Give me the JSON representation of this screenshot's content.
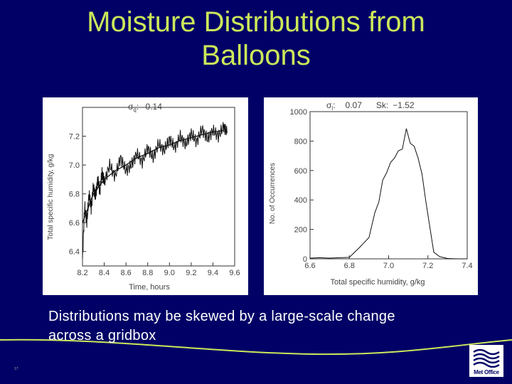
{
  "slide": {
    "title_line1": "Moisture Distributions from",
    "title_line2": "Balloons",
    "caption_line1": "Distributions may be skewed by a large-scale change",
    "caption_line2": "across a gridbox",
    "page_number": "17",
    "logo_text": "Met Office",
    "colors": {
      "background": "#000066",
      "title": "#cce85a",
      "caption": "#ffffff",
      "accent_curve": "#cce85a"
    }
  },
  "chart_data": [
    {
      "type": "line",
      "annotation_symbol": "σ",
      "annotation_sub": "q",
      "annotation_value": "0.14",
      "xlabel": "Time, hours",
      "ylabel": "Total specific humidity, g/kg",
      "xlim": [
        8.2,
        9.6
      ],
      "ylim": [
        6.3,
        7.4
      ],
      "xticks": [
        "8.2",
        "8.4",
        "8.6",
        "8.8",
        "9.0",
        "9.2",
        "9.4",
        "9.6"
      ],
      "yticks": [
        "6.4",
        "6.6",
        "6.8",
        "7.0",
        "7.2"
      ],
      "grid": false,
      "series": [
        {
          "style": "noisy",
          "x": [
            8.2,
            8.22,
            8.24,
            8.26,
            8.28,
            8.3,
            8.32,
            8.34,
            8.36,
            8.38,
            8.4,
            8.45,
            8.5,
            8.55,
            8.6,
            8.65,
            8.7,
            8.75,
            8.8,
            8.85,
            8.9,
            8.95,
            9.0,
            9.05,
            9.1,
            9.15,
            9.2,
            9.25,
            9.3,
            9.35,
            9.4,
            9.45,
            9.5,
            9.53
          ],
          "y": [
            6.35,
            6.72,
            6.6,
            6.8,
            6.7,
            6.85,
            6.78,
            6.9,
            6.82,
            6.95,
            6.88,
            7.0,
            6.92,
            7.05,
            6.96,
            7.0,
            7.08,
            7.02,
            7.12,
            7.05,
            7.15,
            7.1,
            7.18,
            7.12,
            7.2,
            7.14,
            7.22,
            7.16,
            7.25,
            7.18,
            7.24,
            7.2,
            7.27,
            7.22
          ]
        },
        {
          "style": "smooth",
          "x": [
            8.2,
            8.3,
            8.4,
            8.5,
            8.6,
            8.7,
            8.8,
            8.9,
            9.0,
            9.1,
            9.2,
            9.3,
            9.4,
            9.5
          ],
          "y": [
            6.6,
            6.8,
            6.9,
            6.96,
            7.0,
            7.05,
            7.08,
            7.12,
            7.14,
            7.17,
            7.19,
            7.21,
            7.23,
            7.24
          ]
        }
      ]
    },
    {
      "type": "line",
      "annotation_symbol": "σ",
      "annotation_sub": "l",
      "annotation_value": "0.07",
      "annotation_sk_label": "Sk:",
      "annotation_sk_value": "−1.52",
      "xlabel": "Total specific humidity, g/kg",
      "ylabel": "No. of Occurrences",
      "xlim": [
        6.6,
        7.4
      ],
      "ylim": [
        0,
        1000
      ],
      "xticks": [
        "6.6",
        "6.8",
        "7.0",
        "7.2",
        "7.4"
      ],
      "yticks": [
        "0",
        "200",
        "400",
        "600",
        "800",
        "1000"
      ],
      "grid": false,
      "series": [
        {
          "style": "histogram",
          "x": [
            6.6,
            6.65,
            6.7,
            6.75,
            6.8,
            6.85,
            6.9,
            6.93,
            6.95,
            6.97,
            6.99,
            7.01,
            7.03,
            7.05,
            7.07,
            7.09,
            7.11,
            7.13,
            7.15,
            7.17,
            7.19,
            7.21,
            7.23,
            7.26,
            7.3,
            7.35,
            7.4
          ],
          "y": [
            10,
            5,
            10,
            5,
            20,
            60,
            160,
            300,
            400,
            520,
            600,
            640,
            700,
            720,
            760,
            870,
            800,
            750,
            700,
            560,
            400,
            200,
            60,
            10,
            5,
            0,
            0
          ]
        }
      ]
    }
  ]
}
